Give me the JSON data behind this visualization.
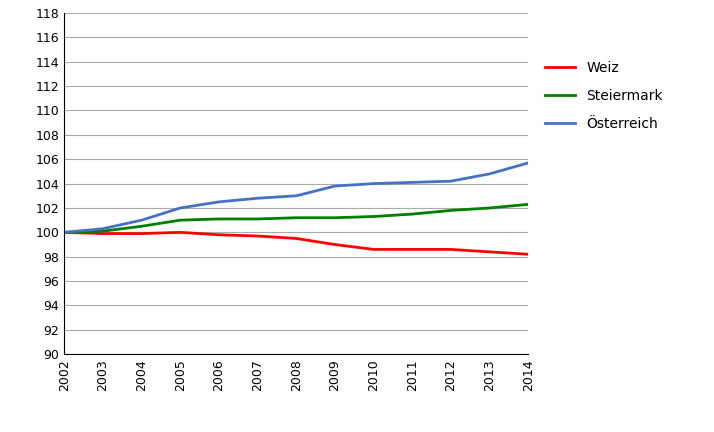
{
  "years": [
    2002,
    2003,
    2004,
    2005,
    2006,
    2007,
    2008,
    2009,
    2010,
    2011,
    2012,
    2013,
    2014
  ],
  "weiz": [
    100.0,
    99.9,
    99.9,
    100.0,
    99.8,
    99.7,
    99.5,
    99.0,
    98.6,
    98.6,
    98.6,
    98.4,
    98.2
  ],
  "steiermark": [
    100.0,
    100.1,
    100.5,
    101.0,
    101.1,
    101.1,
    101.2,
    101.2,
    101.3,
    101.5,
    101.8,
    102.0,
    102.3
  ],
  "osterreich": [
    100.0,
    100.3,
    101.0,
    102.0,
    102.5,
    102.8,
    103.0,
    103.8,
    104.0,
    104.1,
    104.2,
    104.8,
    105.7
  ],
  "line_colors": {
    "weiz": "#ff0000",
    "steiermark": "#008000",
    "osterreich": "#4472c4"
  },
  "legend_labels": [
    "Weiz",
    "Steiermark",
    "Österreich"
  ],
  "ylim": [
    90,
    118
  ],
  "yticks": [
    90,
    92,
    94,
    96,
    98,
    100,
    102,
    104,
    106,
    108,
    110,
    112,
    114,
    116,
    118
  ],
  "background_color": "#ffffff",
  "grid_color": "#aaaaaa",
  "line_width": 2.0,
  "tick_fontsize": 9,
  "legend_fontsize": 10
}
